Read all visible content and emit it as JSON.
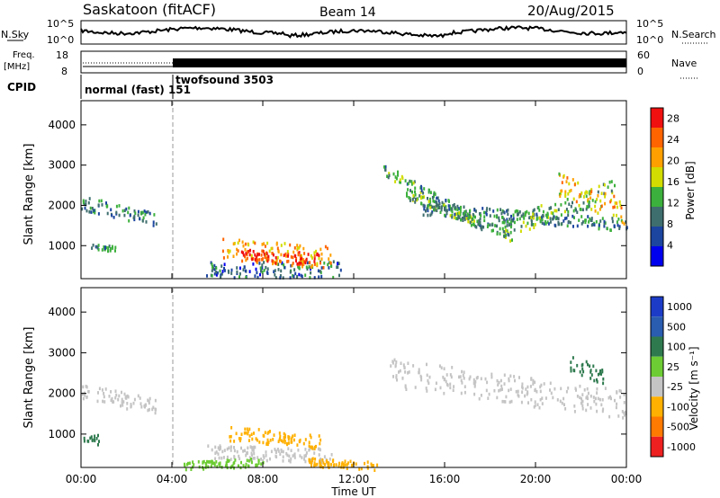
{
  "header": {
    "station": "Saskatoon (fitACF)",
    "beam": "Beam 14",
    "date": "20/Aug/2015"
  },
  "top_panels": {
    "nsky_label": "N.Sky",
    "nsearch_label": "N.Search",
    "noise_ticks": [
      "10^5",
      "10^0"
    ],
    "freq_label_1": "Freq.",
    "freq_label_2": "[MHz]",
    "freq_ticks": [
      "18",
      "8"
    ],
    "nave_label": "Nave",
    "nave_ticks": [
      "60",
      "0"
    ],
    "cpid_label": "CPID",
    "cpid_1": "normal (fast) 151",
    "cpid_2": "twofsound 3503"
  },
  "colors": {
    "power": [
      "#0000ee",
      "#1c45a0",
      "#3f6e6e",
      "#3cb03c",
      "#d2dc00",
      "#ffa000",
      "#ff6400",
      "#f01010"
    ],
    "velocity": [
      "#1c3cc8",
      "#2a5cb0",
      "#2e7a4e",
      "#6dcc33",
      "#c4c4c4",
      "#ffb000",
      "#ff7a00",
      "#ee2020"
    ]
  },
  "chart_data": [
    {
      "type": "heatmap",
      "quantity": "Power",
      "ylabel": "Slant Range [km]",
      "xlabel": "Time UT",
      "x_ticks": [
        "00:00",
        "04:00",
        "08:00",
        "12:00",
        "16:00",
        "20:00",
        "00:00"
      ],
      "y_ticks": [
        1000,
        2000,
        3000,
        4000
      ],
      "xlim_hours": [
        0,
        24
      ],
      "ylim_km": [
        180,
        4600
      ],
      "colorbar_label": "Power [dB]",
      "colorbar_ticks": [
        4,
        8,
        12,
        16,
        20,
        24,
        28
      ],
      "colorbar_range": [
        0,
        30
      ],
      "mode_change_hours": 4.0,
      "echo_bands": [
        {
          "t0": 0.0,
          "t1": 3.3,
          "r0": 2050,
          "r1": 1650,
          "thick": 380,
          "level": 9
        },
        {
          "t0": 0.4,
          "t1": 1.5,
          "r0": 1000,
          "r1": 900,
          "thick": 150,
          "level": 10
        },
        {
          "t0": 5.5,
          "t1": 11.5,
          "r0": 400,
          "r1": 400,
          "thick": 400,
          "level": 8
        },
        {
          "t0": 6.2,
          "t1": 11.0,
          "r0": 900,
          "r1": 700,
          "thick": 550,
          "level": 20
        },
        {
          "t0": 7.0,
          "t1": 10.5,
          "r0": 750,
          "r1": 650,
          "thick": 300,
          "level": 27
        },
        {
          "t0": 13.2,
          "t1": 17.8,
          "r0": 2900,
          "r1": 1450,
          "thick": 300,
          "level": 11
        },
        {
          "t0": 14.2,
          "t1": 19.0,
          "r0": 2300,
          "r1": 1200,
          "thick": 250,
          "level": 12
        },
        {
          "t0": 15.0,
          "t1": 24.0,
          "r0": 1900,
          "r1": 1500,
          "thick": 300,
          "level": 10
        },
        {
          "t0": 18.5,
          "t1": 23.5,
          "r0": 1400,
          "r1": 2400,
          "thick": 500,
          "level": 13
        },
        {
          "t0": 21.0,
          "t1": 24.0,
          "r0": 2500,
          "r1": 1800,
          "thick": 600,
          "level": 19
        }
      ]
    },
    {
      "type": "heatmap",
      "quantity": "Velocity",
      "ylabel": "Slant Range [km]",
      "xlabel": "Time UT",
      "x_ticks": [
        "00:00",
        "04:00",
        "08:00",
        "12:00",
        "16:00",
        "20:00",
        "00:00"
      ],
      "y_ticks": [
        1000,
        2000,
        3000,
        4000
      ],
      "xlim_hours": [
        0,
        24
      ],
      "ylim_km": [
        180,
        4600
      ],
      "colorbar_label": "Velocity [m s⁻¹]",
      "colorbar_ticks": [
        "1000",
        "500",
        "100",
        "25",
        "-25",
        "-100",
        "-500",
        "-1000"
      ],
      "echo_bands": [
        {
          "t0": 0.0,
          "t1": 3.3,
          "r0": 2050,
          "r1": 1650,
          "thick": 380,
          "class": 4
        },
        {
          "t0": 0.1,
          "t1": 0.8,
          "r0": 850,
          "r1": 850,
          "thick": 250,
          "class": 2
        },
        {
          "t0": 5.5,
          "t1": 11.0,
          "r0": 550,
          "r1": 450,
          "thick": 350,
          "class": 4
        },
        {
          "t0": 6.5,
          "t1": 10.5,
          "r0": 1000,
          "r1": 800,
          "thick": 350,
          "class": 5
        },
        {
          "t0": 4.5,
          "t1": 8.0,
          "r0": 200,
          "r1": 300,
          "thick": 200,
          "class": 3
        },
        {
          "t0": 10.0,
          "t1": 13.0,
          "r0": 300,
          "r1": 200,
          "thick": 200,
          "class": 5
        },
        {
          "t0": 13.5,
          "t1": 24.0,
          "r0": 2500,
          "r1": 1700,
          "thick": 700,
          "class": 4
        },
        {
          "t0": 21.5,
          "t1": 23.0,
          "r0": 2750,
          "r1": 2400,
          "thick": 400,
          "class": 2
        }
      ]
    }
  ],
  "xaxis_title": "Time UT"
}
